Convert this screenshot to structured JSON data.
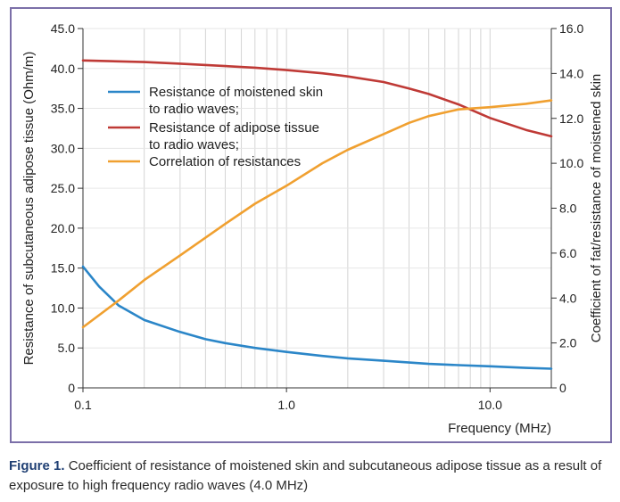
{
  "chart_data": {
    "type": "line",
    "xlabel": "Frequency (MHz)",
    "ylabel_left": "Resistance of subcutaneous adipose tissue (Ohm/m)",
    "ylabel_right": "Coefficient of fat/resistance of moistened skin",
    "x_scale": "log",
    "xlim": [
      0.1,
      20
    ],
    "x_ticks": [
      "0.1",
      "1.0",
      "10.0"
    ],
    "ylim_left": [
      0,
      45
    ],
    "y_ticks_left": [
      "0",
      "5.0",
      "10.0",
      "15.0",
      "20.0",
      "25.0",
      "30.0",
      "35.0",
      "40.0",
      "45.0"
    ],
    "ylim_right": [
      0,
      16
    ],
    "y_ticks_right": [
      "0",
      "2.0",
      "4.0",
      "6.0",
      "8.0",
      "10.0",
      "12.0",
      "14.0",
      "16.0"
    ],
    "grid": "vertical log-minor lines",
    "legend_position": "upper-left",
    "series": [
      {
        "name": "Resistance of moistened skin to radio waves;",
        "legend_lines": [
          "Resistance of moistened skin",
          "to radio waves;"
        ],
        "axis": "left",
        "color": "#2b86c8",
        "x": [
          0.1,
          0.12,
          0.15,
          0.2,
          0.3,
          0.4,
          0.5,
          0.7,
          1,
          1.5,
          2,
          3,
          5,
          7,
          10,
          15,
          20
        ],
        "y": [
          15.2,
          12.7,
          10.3,
          8.5,
          7.0,
          6.1,
          5.6,
          5.0,
          4.5,
          4.0,
          3.7,
          3.4,
          3.0,
          2.85,
          2.7,
          2.5,
          2.4
        ]
      },
      {
        "name": "Resistance of adipose tissue to radio waves;",
        "legend_lines": [
          "Resistance of adipose tissue",
          "to radio waves;"
        ],
        "axis": "left",
        "color": "#bf3a36",
        "x": [
          0.1,
          0.2,
          0.3,
          0.5,
          0.7,
          1,
          1.5,
          2,
          3,
          4,
          5,
          7,
          10,
          15,
          20
        ],
        "y": [
          41.0,
          40.8,
          40.6,
          40.3,
          40.1,
          39.8,
          39.4,
          39.0,
          38.3,
          37.5,
          36.8,
          35.5,
          33.8,
          32.3,
          31.5
        ]
      },
      {
        "name": "Correlation of resistances",
        "legend_lines": [
          "Correlation of resistances"
        ],
        "axis": "right",
        "color": "#f0a030",
        "x": [
          0.1,
          0.15,
          0.2,
          0.3,
          0.5,
          0.7,
          1,
          1.5,
          2,
          3,
          4,
          5,
          7,
          10,
          15,
          20
        ],
        "y": [
          2.7,
          3.9,
          4.8,
          5.9,
          7.3,
          8.2,
          9.0,
          10.0,
          10.6,
          11.3,
          11.8,
          12.1,
          12.4,
          12.5,
          12.65,
          12.8
        ]
      }
    ]
  },
  "caption": {
    "label": "Figure 1.",
    "text": "Coefficient of resistance of moistened skin and subcutaneous adipose tissue as a result of exposure to high frequency radio waves (4.0 MHz)"
  }
}
